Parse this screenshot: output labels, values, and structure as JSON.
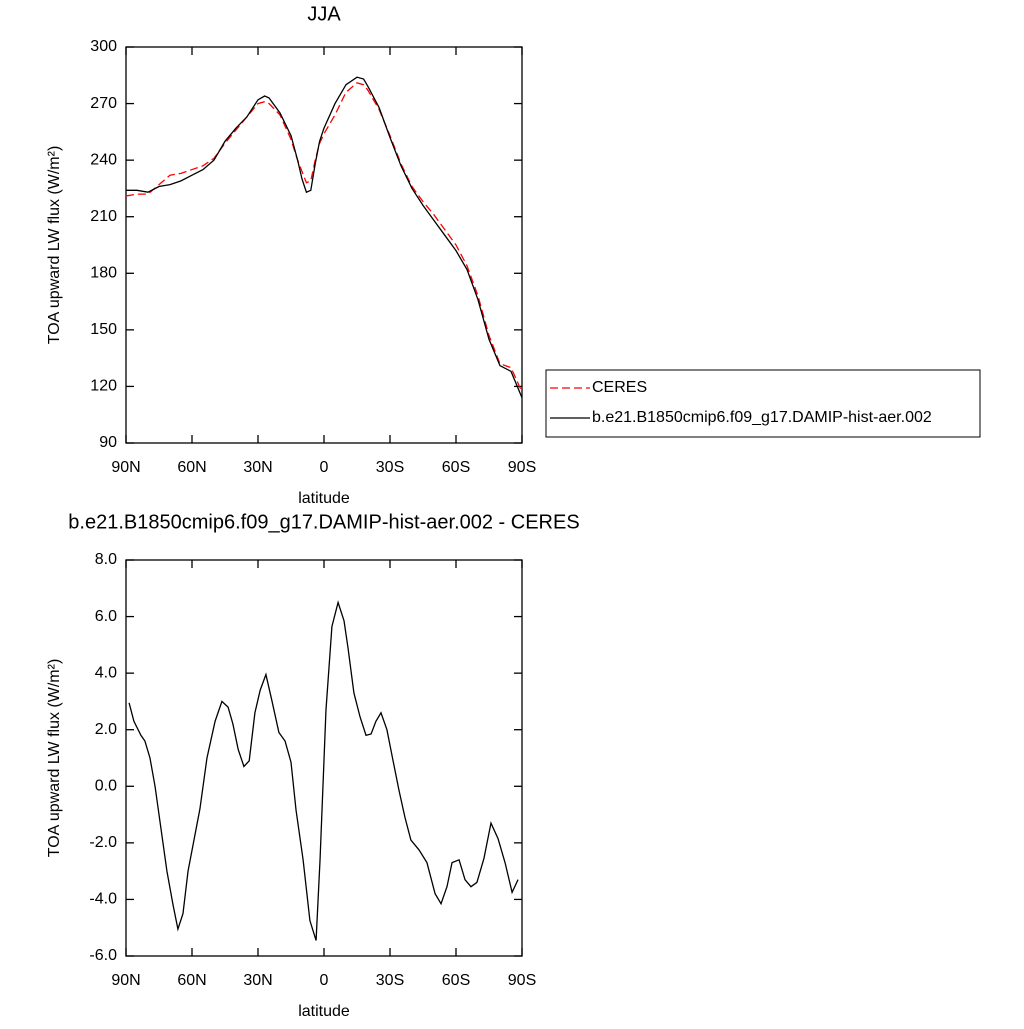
{
  "chart_data": [
    {
      "type": "line",
      "title": "JJA",
      "xlabel": "latitude",
      "ylabel": "TOA upward LW flux (W/m²)",
      "x": [
        90,
        85,
        80,
        75,
        70,
        65,
        60,
        55,
        50,
        45,
        40,
        35,
        30,
        27,
        25,
        20,
        15,
        12,
        10,
        8,
        6,
        4,
        2,
        0,
        -5,
        -10,
        -15,
        -18,
        -20,
        -25,
        -30,
        -35,
        -40,
        -45,
        -50,
        -55,
        -60,
        -65,
        -70,
        -75,
        -80,
        -85,
        -90
      ],
      "series": [
        {
          "name": "CERES",
          "color": "#ff0000",
          "linestyle": "dashed",
          "values": [
            221,
            222,
            222,
            227,
            232,
            233,
            235,
            237,
            241,
            249,
            256,
            263,
            270,
            271,
            270,
            264,
            251,
            240,
            234,
            228,
            229,
            240,
            249,
            254,
            264,
            276,
            281,
            280,
            277,
            267,
            253,
            238,
            226,
            218,
            211,
            203,
            195,
            184,
            168,
            147,
            132,
            130,
            117
          ]
        },
        {
          "name": "b.e21.B1850cmip6.f09_g17.DAMIP-hist-aer.002",
          "color": "#000000",
          "linestyle": "solid",
          "values": [
            224,
            224,
            223,
            226,
            227,
            229,
            232,
            235,
            240,
            250,
            257,
            263,
            272,
            274,
            273,
            265,
            253,
            240,
            230,
            223,
            224,
            238,
            250,
            257,
            270,
            280,
            284,
            283,
            279,
            268,
            252,
            237,
            225,
            216,
            208,
            200,
            192,
            182,
            166,
            145,
            131,
            128,
            114
          ]
        }
      ],
      "xlim": [
        90,
        -90
      ],
      "xticks": [
        {
          "value": 90,
          "label": "90N"
        },
        {
          "value": 60,
          "label": "60N"
        },
        {
          "value": 30,
          "label": "30N"
        },
        0,
        {
          "value": -30,
          "label": "30S"
        },
        {
          "value": -60,
          "label": "60S"
        },
        {
          "value": -90,
          "label": "90S"
        }
      ],
      "ylim": [
        90,
        300
      ],
      "yticks": [
        90,
        120,
        150,
        180,
        210,
        240,
        270,
        300
      ],
      "legend": "right"
    },
    {
      "type": "line",
      "title": "b.e21.B1850cmip6.f09_g17.DAMIP-hist-aer.002 - CERES",
      "xlabel": "latitude",
      "ylabel": "TOA upward LW flux (W/m²)",
      "x": [
        88.6,
        86.4,
        83.2,
        81.4,
        79.1,
        76.8,
        74.1,
        71.4,
        68.6,
        66.4,
        64.1,
        61.8,
        59.1,
        56.4,
        53.2,
        49.5,
        46.4,
        43.6,
        41.4,
        39,
        36.4,
        34,
        31.4,
        29,
        26.4,
        23.6,
        20.5,
        17.7,
        15,
        12.7,
        9.5,
        6.4,
        3.6,
        1.8,
        -0.9,
        -3.6,
        -6.4,
        -9.1,
        -10.9,
        -13.6,
        -16.4,
        -19.1,
        -21.4,
        -23.6,
        -25.9,
        -28.6,
        -31.4,
        -34.1,
        -36.8,
        -39.5,
        -43.2,
        -46.8,
        -50.5,
        -53.2,
        -55.9,
        -58.2,
        -61.4,
        -64.1,
        -66.8,
        -69.5,
        -72.7,
        -75.9,
        -79.1,
        -82.3,
        -85.5,
        -88.2
      ],
      "series": [
        {
          "color": "#000000",
          "values": [
            2.95,
            2.3,
            1.8,
            1.6,
            1.0,
            0.0,
            -1.5,
            -3.0,
            -4.2,
            -5.05,
            -4.5,
            -3.0,
            -1.9,
            -0.8,
            1.0,
            2.3,
            3.0,
            2.8,
            2.2,
            1.3,
            0.7,
            0.9,
            2.6,
            3.4,
            3.95,
            3.0,
            1.9,
            1.6,
            0.85,
            -0.85,
            -2.6,
            -4.75,
            -5.45,
            -2.6,
            2.7,
            5.65,
            6.5,
            5.85,
            4.9,
            3.3,
            2.45,
            1.8,
            1.85,
            2.3,
            2.6,
            2.0,
            0.9,
            -0.15,
            -1.1,
            -1.9,
            -2.25,
            -2.7,
            -3.8,
            -4.15,
            -3.55,
            -2.7,
            -2.6,
            -3.3,
            -3.55,
            -3.4,
            -2.55,
            -1.3,
            -1.85,
            -2.7,
            -3.75,
            -3.3
          ]
        }
      ],
      "xlim": [
        90,
        -90
      ],
      "xticks": [
        {
          "value": 90,
          "label": "90N"
        },
        {
          "value": 60,
          "label": "60N"
        },
        {
          "value": 30,
          "label": "30N"
        },
        0,
        {
          "value": -30,
          "label": "30S"
        },
        {
          "value": -60,
          "label": "60S"
        },
        {
          "value": -90,
          "label": "90S"
        }
      ],
      "ylim": [
        -6,
        8
      ],
      "yticks": [
        {
          "value": -6,
          "label": "-6.0"
        },
        {
          "value": -4,
          "label": "-4.0"
        },
        {
          "value": -2,
          "label": "-2.0"
        },
        {
          "value": 0,
          "label": "0.0"
        },
        {
          "value": 2,
          "label": "2.0"
        },
        {
          "value": 4,
          "label": "4.0"
        },
        {
          "value": 6,
          "label": "6.0"
        },
        {
          "value": 8,
          "label": "8.0"
        }
      ]
    }
  ]
}
